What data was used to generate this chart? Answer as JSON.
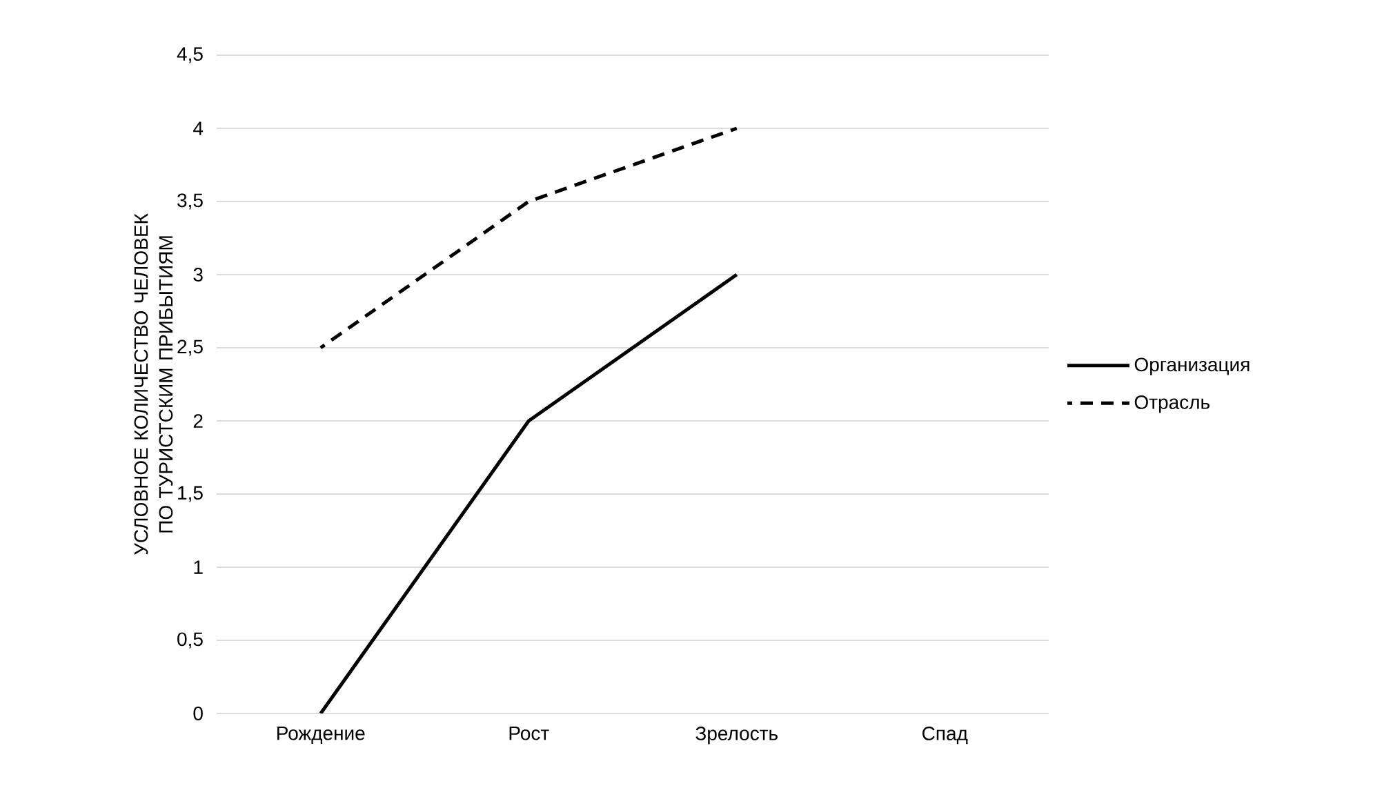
{
  "chart_data": {
    "type": "line",
    "ylabel": "УСЛОВНОЕ КОЛИЧЕСТВО ЧЕЛОВЕК ПО ТУРИСТСКИМ ПРИБЫТИЯМ",
    "categories": [
      "Рождение",
      "Рост",
      "Зрелость",
      "Спад"
    ],
    "series": [
      {
        "name": "Организация",
        "color": "#000000",
        "line_style": "solid",
        "values": [
          0,
          2,
          3,
          null
        ]
      },
      {
        "name": "Отрасль",
        "color": "#000000",
        "line_style": "dashed",
        "values": [
          2.5,
          3.5,
          4,
          null
        ]
      }
    ],
    "ylim": [
      0,
      4.5
    ],
    "yticks": [
      0,
      {
        "value": 0.5,
        "label": "0,5"
      },
      1,
      {
        "value": 1.5,
        "label": "1,5"
      },
      2,
      {
        "value": 2.5,
        "label": "2,5"
      },
      3,
      {
        "value": 3.5,
        "label": "3,5"
      },
      4,
      {
        "value": 4.5,
        "label": "4,5"
      }
    ],
    "grid": "y",
    "legend": "right",
    "marker": "none"
  }
}
